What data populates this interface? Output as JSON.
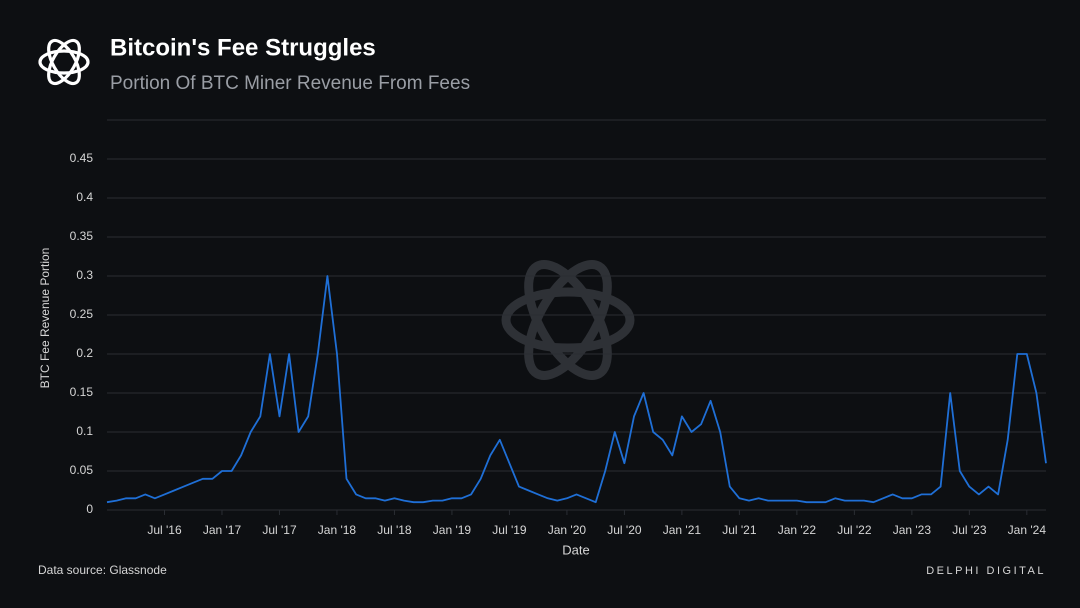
{
  "chart_data": {
    "type": "line",
    "title": "Bitcoin's Fee Struggles",
    "subtitle": "Portion Of BTC Miner Revenue From Fees",
    "xlabel": "Date",
    "ylabel": "BTC Fee Revenue Portion",
    "source": "Data source: Glassnode",
    "brand": "DELPHI DIGITAL",
    "x": [
      "2016-01",
      "2016-02",
      "2016-03",
      "2016-04",
      "2016-05",
      "2016-06",
      "2016-07",
      "2016-08",
      "2016-09",
      "2016-10",
      "2016-11",
      "2016-12",
      "2017-01",
      "2017-02",
      "2017-03",
      "2017-04",
      "2017-05",
      "2017-06",
      "2017-07",
      "2017-08",
      "2017-09",
      "2017-10",
      "2017-11",
      "2017-12",
      "2018-01",
      "2018-02",
      "2018-03",
      "2018-04",
      "2018-05",
      "2018-06",
      "2018-07",
      "2018-08",
      "2018-09",
      "2018-10",
      "2018-11",
      "2018-12",
      "2019-01",
      "2019-02",
      "2019-03",
      "2019-04",
      "2019-05",
      "2019-06",
      "2019-07",
      "2019-08",
      "2019-09",
      "2019-10",
      "2019-11",
      "2019-12",
      "2020-01",
      "2020-02",
      "2020-03",
      "2020-04",
      "2020-05",
      "2020-06",
      "2020-07",
      "2020-08",
      "2020-09",
      "2020-10",
      "2020-11",
      "2020-12",
      "2021-01",
      "2021-02",
      "2021-03",
      "2021-04",
      "2021-05",
      "2021-06",
      "2021-07",
      "2021-08",
      "2021-09",
      "2021-10",
      "2021-11",
      "2021-12",
      "2022-01",
      "2022-02",
      "2022-03",
      "2022-04",
      "2022-05",
      "2022-06",
      "2022-07",
      "2022-08",
      "2022-09",
      "2022-10",
      "2022-11",
      "2022-12",
      "2023-01",
      "2023-02",
      "2023-03",
      "2023-04",
      "2023-05",
      "2023-06",
      "2023-07",
      "2023-08",
      "2023-09",
      "2023-10",
      "2023-11",
      "2023-12",
      "2024-01",
      "2024-02",
      "2024-03"
    ],
    "series": [
      {
        "name": "BTC Fee Revenue Portion",
        "color": "#1f6fd6",
        "values": [
          0.01,
          0.012,
          0.015,
          0.015,
          0.02,
          0.015,
          0.02,
          0.025,
          0.03,
          0.035,
          0.04,
          0.04,
          0.05,
          0.05,
          0.07,
          0.1,
          0.12,
          0.2,
          0.12,
          0.2,
          0.1,
          0.12,
          0.2,
          0.3,
          0.2,
          0.04,
          0.02,
          0.015,
          0.015,
          0.012,
          0.015,
          0.012,
          0.01,
          0.01,
          0.012,
          0.012,
          0.015,
          0.015,
          0.02,
          0.04,
          0.07,
          0.09,
          0.06,
          0.03,
          0.025,
          0.02,
          0.015,
          0.012,
          0.015,
          0.02,
          0.015,
          0.01,
          0.05,
          0.1,
          0.06,
          0.12,
          0.15,
          0.1,
          0.09,
          0.07,
          0.12,
          0.1,
          0.11,
          0.14,
          0.1,
          0.03,
          0.015,
          0.012,
          0.015,
          0.012,
          0.012,
          0.012,
          0.012,
          0.01,
          0.01,
          0.01,
          0.015,
          0.012,
          0.012,
          0.012,
          0.01,
          0.015,
          0.02,
          0.015,
          0.015,
          0.02,
          0.02,
          0.03,
          0.15,
          0.05,
          0.03,
          0.02,
          0.03,
          0.02,
          0.09,
          0.2,
          0.2,
          0.15,
          0.06
        ]
      }
    ],
    "xlim": [
      "2016-01",
      "2024-03"
    ],
    "xticks": [
      {
        "value": "2016-07",
        "label": "Jul '16"
      },
      {
        "value": "2017-01",
        "label": "Jan '17"
      },
      {
        "value": "2017-07",
        "label": "Jul '17"
      },
      {
        "value": "2018-01",
        "label": "Jan '18"
      },
      {
        "value": "2018-07",
        "label": "Jul '18"
      },
      {
        "value": "2019-01",
        "label": "Jan '19"
      },
      {
        "value": "2019-07",
        "label": "Jul '19"
      },
      {
        "value": "2020-01",
        "label": "Jan '20"
      },
      {
        "value": "2020-07",
        "label": "Jul '20"
      },
      {
        "value": "2021-01",
        "label": "Jan '21"
      },
      {
        "value": "2021-07",
        "label": "Jul '21"
      },
      {
        "value": "2022-01",
        "label": "Jan '22"
      },
      {
        "value": "2022-07",
        "label": "Jul '22"
      },
      {
        "value": "2023-01",
        "label": "Jan '23"
      },
      {
        "value": "2023-07",
        "label": "Jul '23"
      },
      {
        "value": "2024-01",
        "label": "Jan '24"
      }
    ],
    "ylim": [
      0,
      0.5
    ],
    "yticks": [
      0,
      0.05,
      0.1,
      0.15,
      0.2,
      0.25,
      0.3,
      0.35,
      0.4,
      0.45
    ],
    "grid": true
  }
}
